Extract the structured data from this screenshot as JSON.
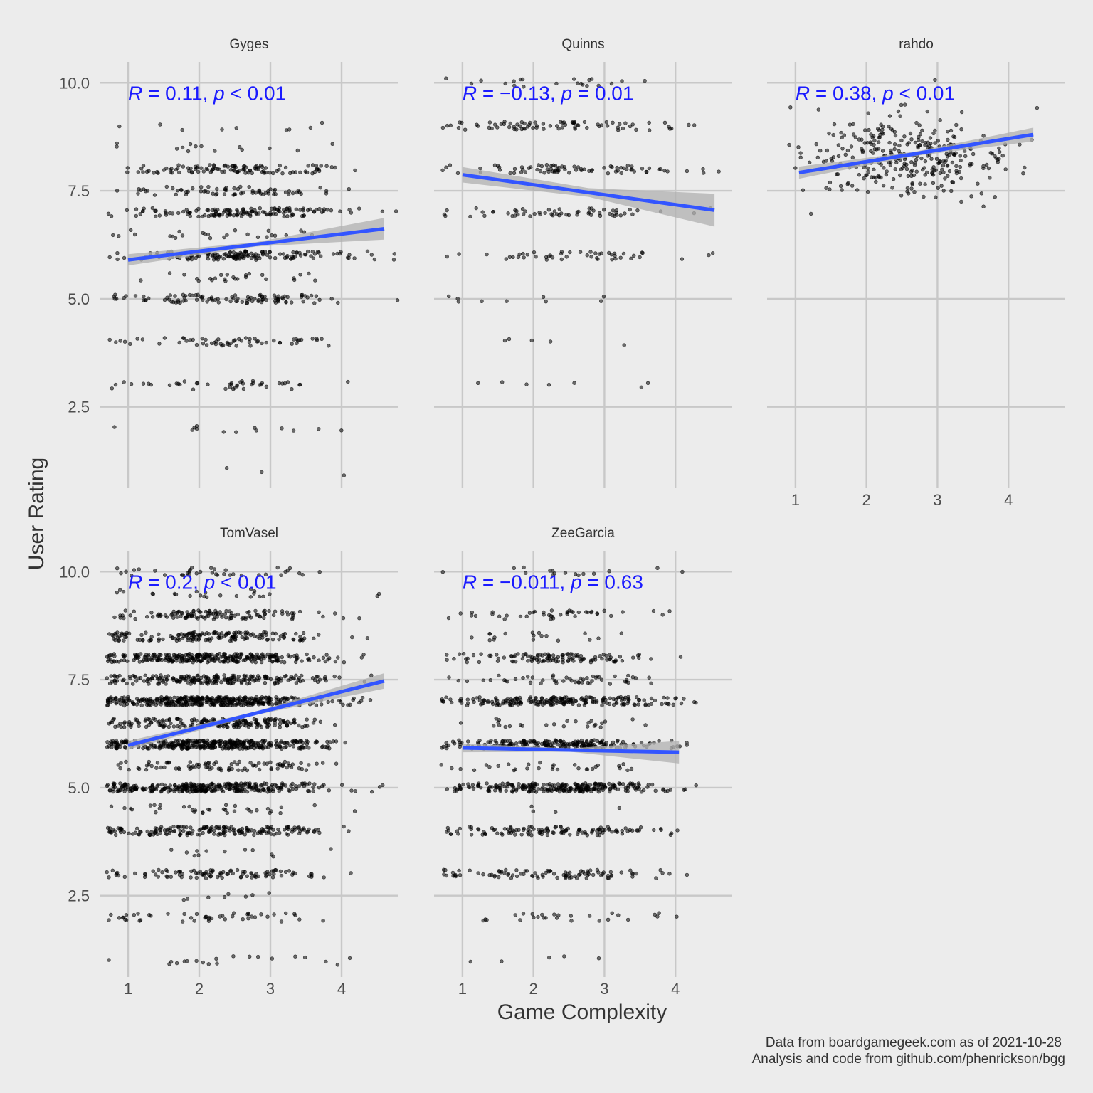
{
  "chart_data": {
    "type": "scatter",
    "xlabel": "Game Complexity",
    "ylabel": "User Rating",
    "x_ticks": [
      1,
      2,
      3,
      4
    ],
    "y_ticks": [
      2.5,
      5.0,
      7.5,
      10.0
    ],
    "y_tick_labels": [
      "2.5",
      "5.0",
      "7.5",
      "10.0"
    ],
    "xlim": [
      0.6,
      4.8
    ],
    "ylim": [
      0.75,
      10.35
    ],
    "grid": true,
    "facet_layout": "3 columns x 2 rows, shared axes",
    "colors": {
      "points": "#000000",
      "fit_line": "#3355ff",
      "confidence_band": "#b0b0b0",
      "annotation": "#1a1aff",
      "background": "#ececec",
      "grid": "#c8c8c8"
    },
    "facets": [
      {
        "name": "Gyges",
        "annotation": {
          "R": "0.11",
          "p": "< 0.01"
        },
        "fit": {
          "x_start": 1.0,
          "y_start": 5.9,
          "x_end": 4.6,
          "y_end": 6.62
        },
        "band_halfwidth": {
          "start": 0.13,
          "middle": 0.05,
          "end": 0.25
        },
        "point_density": {
          "rating_levels": [
            1,
            2,
            3,
            4,
            5,
            5.5,
            6,
            6.5,
            7,
            7.5,
            8,
            8.5,
            9,
            10
          ],
          "level_weights": [
            3,
            8,
            40,
            45,
            90,
            15,
            130,
            20,
            120,
            55,
            90,
            18,
            10,
            0
          ],
          "n_points": 780,
          "x_center": 2.5,
          "x_spread": 0.8,
          "x_min": 0.7,
          "x_max": 4.8
        }
      },
      {
        "name": "Quinns",
        "annotation": {
          "R": "−0.13",
          "p": "= 0.01"
        },
        "fit": {
          "x_start": 1.0,
          "y_start": 7.87,
          "x_end": 4.55,
          "y_end": 7.05
        },
        "band_halfwidth": {
          "start": 0.18,
          "middle": 0.1,
          "end": 0.38
        },
        "point_density": {
          "rating_levels": [
            2,
            3,
            4,
            5,
            6,
            7,
            8,
            9,
            10
          ],
          "level_weights": [
            1,
            7,
            5,
            15,
            40,
            55,
            85,
            75,
            25
          ],
          "n_points": 310,
          "x_center": 2.4,
          "x_spread": 0.9,
          "x_min": 0.7,
          "x_max": 4.7
        }
      },
      {
        "name": "rahdo",
        "annotation": {
          "R": "0.38",
          "p": "< 0.01"
        },
        "fit": {
          "x_start": 1.05,
          "y_start": 7.92,
          "x_end": 4.35,
          "y_end": 8.8
        },
        "band_halfwidth": {
          "start": 0.14,
          "middle": 0.05,
          "end": 0.16
        },
        "point_density": {
          "rating_levels": [
            8.3
          ],
          "level_weights": [
            1
          ],
          "n_points": 330,
          "x_center": 2.6,
          "x_spread": 0.75,
          "x_min": 0.9,
          "x_max": 4.6,
          "y_spread": 0.45
        }
      },
      {
        "name": "TomVasel",
        "annotation": {
          "R": "0.2",
          "p": "< 0.01"
        },
        "fit": {
          "x_start": 1.0,
          "y_start": 5.98,
          "x_end": 4.6,
          "y_end": 7.47
        },
        "band_halfwidth": {
          "start": 0.1,
          "middle": 0.04,
          "end": 0.18
        },
        "point_density": {
          "rating_levels": [
            1,
            2,
            2.5,
            3,
            3.5,
            4,
            4.5,
            5,
            5.5,
            6,
            6.5,
            7,
            7.5,
            8,
            8.5,
            9,
            9.5,
            10
          ],
          "level_weights": [
            15,
            40,
            8,
            70,
            10,
            110,
            20,
            200,
            60,
            230,
            120,
            260,
            140,
            200,
            90,
            80,
            15,
            25
          ],
          "n_points": 2600,
          "x_center": 2.2,
          "x_spread": 0.8,
          "x_min": 0.7,
          "x_max": 4.8
        }
      },
      {
        "name": "ZeeGarcia",
        "annotation": {
          "R": "−0.011",
          "p": "= 0.63"
        },
        "fit": {
          "x_start": 1.0,
          "y_start": 5.92,
          "x_end": 4.05,
          "y_end": 5.82
        },
        "band_halfwidth": {
          "start": 0.1,
          "middle": 0.04,
          "end": 0.26
        },
        "point_density": {
          "rating_levels": [
            1,
            2,
            2.5,
            3,
            4,
            4.5,
            5,
            5.5,
            6,
            6.5,
            7,
            7.5,
            8,
            8.5,
            9,
            10
          ],
          "level_weights": [
            5,
            25,
            2,
            90,
            100,
            2,
            210,
            30,
            220,
            30,
            210,
            40,
            110,
            15,
            45,
            15
          ],
          "n_points": 1230,
          "x_center": 2.3,
          "x_spread": 0.8,
          "x_min": 0.7,
          "x_max": 4.3
        }
      }
    ]
  },
  "caption": {
    "line1": "Data from boardgamegeek.com as of 2021-10-28",
    "line2": "Analysis and code from github.com/phenrickson/bgg"
  }
}
